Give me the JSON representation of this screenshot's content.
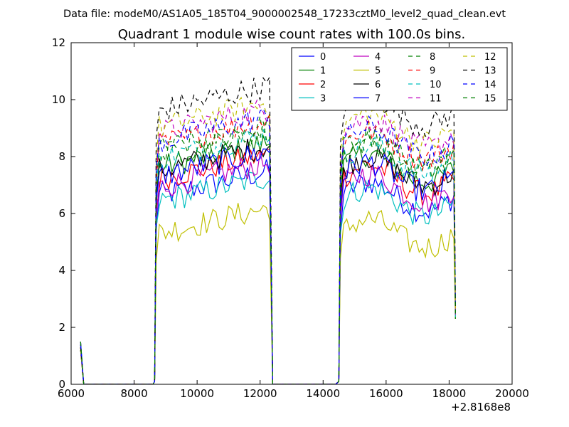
{
  "chart_data": {
    "type": "line",
    "subtitle": "Data file: modeM0/AS1A05_185T04_9000002548_17233cztM0_level2_quad_clean.evt",
    "title": "Quadrant 1 module wise count rates with 100.0s bins.",
    "xlabel": "",
    "ylabel": "",
    "x_offset_label": "+2.8168e8",
    "xlim": [
      6000,
      20000
    ],
    "ylim": [
      0,
      12
    ],
    "x_ticks": [
      6000,
      8000,
      10000,
      12000,
      14000,
      16000,
      18000,
      20000
    ],
    "y_ticks": [
      0,
      2,
      4,
      6,
      8,
      10,
      12
    ],
    "grid": false,
    "legend_position": "top-right",
    "segments": [
      {
        "start": 8700,
        "end": 12300
      },
      {
        "start": 14550,
        "end": 18150
      }
    ],
    "series": [
      {
        "name": "0",
        "color": "#0000ff",
        "style": "solid",
        "level": 6.6
      },
      {
        "name": "1",
        "color": "#008000",
        "style": "solid",
        "level": 7.6
      },
      {
        "name": "2",
        "color": "#ff0000",
        "style": "solid",
        "level": 7.2
      },
      {
        "name": "3",
        "color": "#00bfbf",
        "style": "solid",
        "level": 6.4
      },
      {
        "name": "4",
        "color": "#bf00bf",
        "style": "solid",
        "level": 6.9
      },
      {
        "name": "5",
        "color": "#bfbf00",
        "style": "solid",
        "level": 5.3
      },
      {
        "name": "6",
        "color": "#000000",
        "style": "solid",
        "level": 7.5
      },
      {
        "name": "7",
        "color": "#0000ff",
        "style": "solid",
        "level": 7.3
      },
      {
        "name": "8",
        "color": "#008000",
        "style": "dashed",
        "level": 8.2
      },
      {
        "name": "9",
        "color": "#ff0000",
        "style": "dashed",
        "level": 8.4
      },
      {
        "name": "10",
        "color": "#00bfbf",
        "style": "dashed",
        "level": 7.9
      },
      {
        "name": "11",
        "color": "#bf00bf",
        "style": "dashed",
        "level": 8.8
      },
      {
        "name": "12",
        "color": "#bfbf00",
        "style": "dashed",
        "level": 9.0
      },
      {
        "name": "13",
        "color": "#000000",
        "style": "dashed",
        "level": 9.6
      },
      {
        "name": "14",
        "color": "#0000ff",
        "style": "dashed",
        "level": 8.5
      },
      {
        "name": "15",
        "color": "#008000",
        "style": "dashed",
        "level": 8.0
      }
    ]
  }
}
